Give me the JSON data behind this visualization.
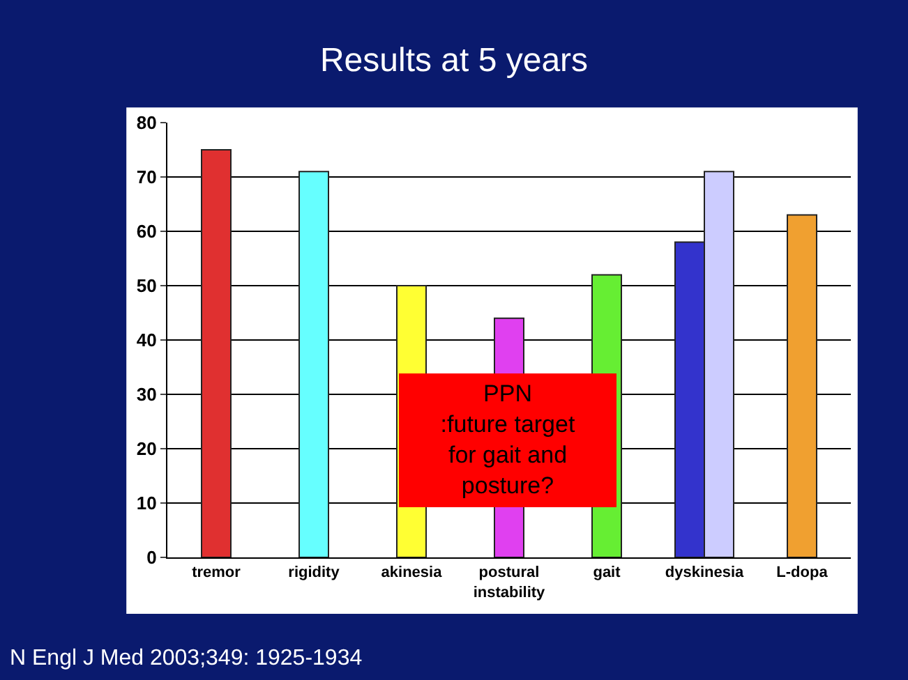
{
  "chart_data": {
    "type": "bar",
    "title": "Results at 5 years",
    "categories": [
      "tremor",
      "rigidity",
      "akinesia",
      "postural\ninstability",
      "gait",
      "dyskinesia",
      "L-dopa"
    ],
    "series": [
      {
        "colors": [
          "#e03030",
          "#66ffff",
          "#ffff33",
          "#e040f0",
          "#66ee33",
          "#3333cc",
          "#f0a030"
        ],
        "values": [
          75,
          71,
          50,
          44,
          52,
          58,
          63
        ]
      },
      {
        "color": "#ccccff",
        "values": [
          null,
          null,
          null,
          null,
          null,
          71,
          null
        ]
      }
    ],
    "ylim": [
      0,
      80
    ],
    "yticks": [
      0,
      10,
      20,
      30,
      40,
      50,
      60,
      70,
      80
    ],
    "grid": "y",
    "annotations": [
      "PPN\n:future target\nfor gait and\nposture?",
      "N Engl J Med 2003;349: 1925-1934"
    ]
  }
}
